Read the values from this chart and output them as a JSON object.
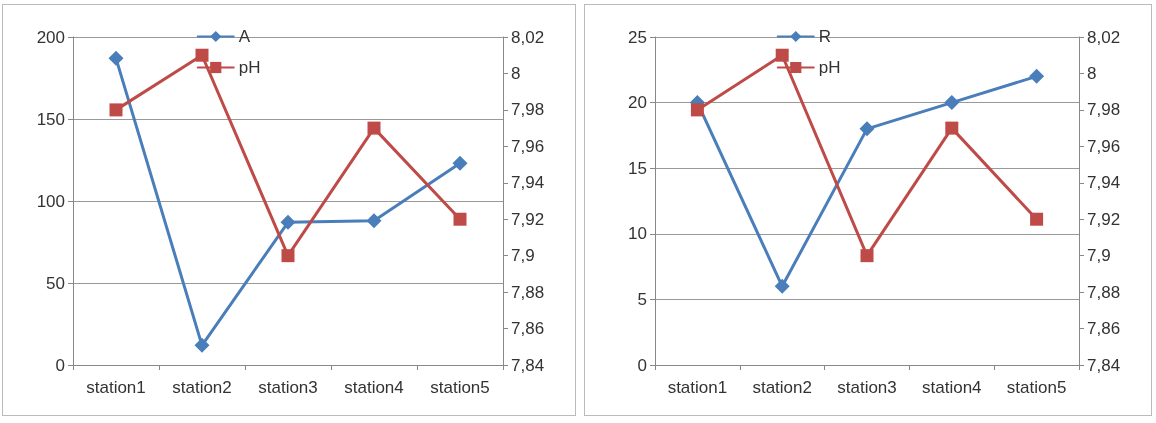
{
  "chart_data": [
    {
      "type": "line",
      "categories": [
        "station1",
        "station2",
        "station3",
        "station4",
        "station5"
      ],
      "series": [
        {
          "name": "A",
          "color": "#4a7ebb",
          "marker": "diamond",
          "values": [
            187,
            12,
            87,
            88,
            123
          ]
        },
        {
          "name": "pH",
          "color": "#be4b48",
          "marker": "square",
          "axis": "y2",
          "values": [
            7.98,
            8.01,
            7.9,
            7.97,
            7.92
          ]
        }
      ],
      "ylim": [
        0,
        200
      ],
      "yticks": [
        0,
        50,
        100,
        150,
        200
      ],
      "y2lim": [
        7.84,
        8.02
      ],
      "y2ticks": [
        {
          "value": 7.84,
          "label": "7,84"
        },
        {
          "value": 7.86,
          "label": "7,86"
        },
        {
          "value": 7.88,
          "label": "7,88"
        },
        {
          "value": 7.9,
          "label": "7,9"
        },
        {
          "value": 7.92,
          "label": "7,92"
        },
        {
          "value": 7.94,
          "label": "7,94"
        },
        {
          "value": 7.96,
          "label": "7,96"
        },
        {
          "value": 7.98,
          "label": "7,98"
        },
        {
          "value": 8,
          "label": "8"
        },
        {
          "value": 8.02,
          "label": "8,02"
        }
      ],
      "grid": "y",
      "legend": "top"
    },
    {
      "type": "line",
      "categories": [
        "station1",
        "station2",
        "station3",
        "station4",
        "station5"
      ],
      "series": [
        {
          "name": "R",
          "color": "#4a7ebb",
          "marker": "diamond",
          "values": [
            20,
            6,
            18,
            20,
            22
          ]
        },
        {
          "name": "pH",
          "color": "#be4b48",
          "marker": "square",
          "axis": "y2",
          "values": [
            7.98,
            8.01,
            7.9,
            7.97,
            7.92
          ]
        }
      ],
      "ylim": [
        0,
        25
      ],
      "yticks": [
        0,
        5,
        10,
        15,
        20,
        25
      ],
      "y2lim": [
        7.84,
        8.02
      ],
      "y2ticks": [
        {
          "value": 7.84,
          "label": "7,84"
        },
        {
          "value": 7.86,
          "label": "7,86"
        },
        {
          "value": 7.88,
          "label": "7,88"
        },
        {
          "value": 7.9,
          "label": "7,9"
        },
        {
          "value": 7.92,
          "label": "7,92"
        },
        {
          "value": 7.94,
          "label": "7,94"
        },
        {
          "value": 7.96,
          "label": "7,96"
        },
        {
          "value": 7.98,
          "label": "7,98"
        },
        {
          "value": 8,
          "label": "8"
        },
        {
          "value": 8.02,
          "label": "8,02"
        }
      ],
      "grid": "y",
      "legend": "top"
    }
  ]
}
